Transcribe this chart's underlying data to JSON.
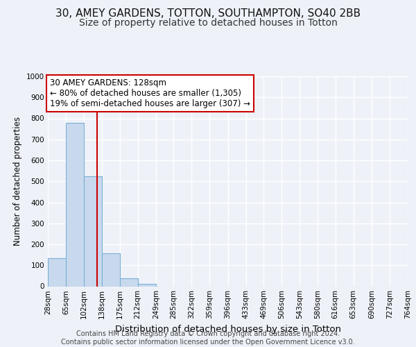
{
  "title_line1": "30, AMEY GARDENS, TOTTON, SOUTHAMPTON, SO40 2BB",
  "title_line2": "Size of property relative to detached houses in Totton",
  "xlabel": "Distribution of detached houses by size in Totton",
  "ylabel": "Number of detached properties",
  "bar_color": "#c8d9ee",
  "bar_edge_color": "#7aafd4",
  "bin_edges": [
    28,
    65,
    102,
    138,
    175,
    212,
    249,
    285,
    322,
    359,
    396,
    433,
    469,
    506,
    543,
    580,
    616,
    653,
    690,
    727,
    764
  ],
  "bar_heights": [
    133,
    778,
    524,
    157,
    37,
    12,
    0,
    0,
    0,
    0,
    0,
    0,
    0,
    0,
    0,
    0,
    0,
    0,
    0,
    0
  ],
  "property_size": 128,
  "vline_color": "#cc0000",
  "annotation_text": "30 AMEY GARDENS: 128sqm\n← 80% of detached houses are smaller (1,305)\n19% of semi-detached houses are larger (307) →",
  "annotation_box_color": "#ffffff",
  "annotation_border_color": "#cc0000",
  "ylim": [
    0,
    1000
  ],
  "yticks": [
    0,
    100,
    200,
    300,
    400,
    500,
    600,
    700,
    800,
    900,
    1000
  ],
  "footer_text": "Contains HM Land Registry data © Crown copyright and database right 2024.\nContains public sector information licensed under the Open Government Licence v3.0.",
  "background_color": "#eef2f8",
  "plot_bg_color": "#eef2f8",
  "grid_color": "#ffffff",
  "title1_fontsize": 11,
  "title2_fontsize": 10,
  "xlabel_fontsize": 9.5,
  "ylabel_fontsize": 8.5,
  "tick_fontsize": 7.5,
  "footer_fontsize": 7,
  "ann_fontsize": 8.5
}
